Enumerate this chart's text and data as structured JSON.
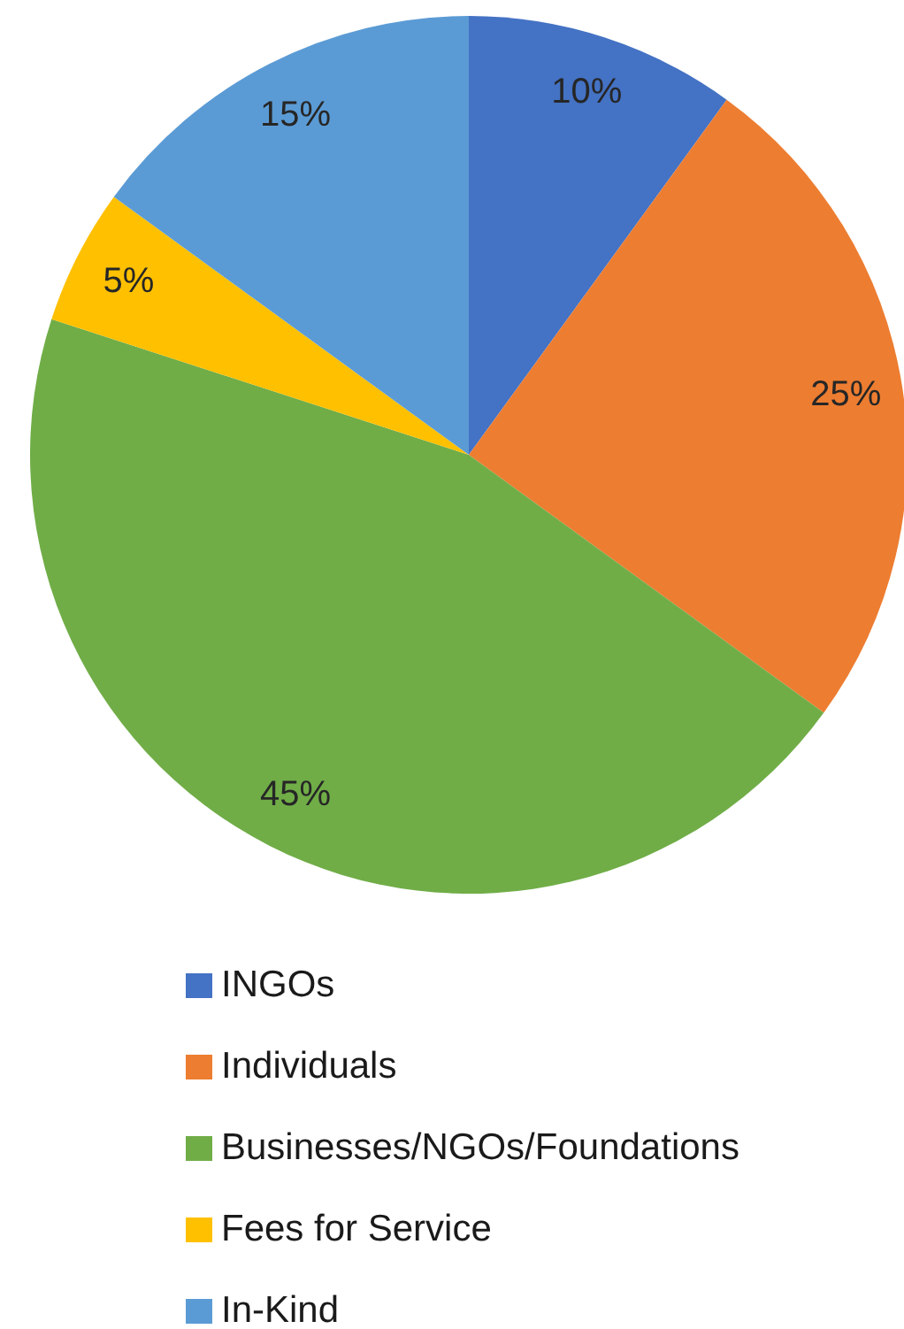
{
  "chart_data": {
    "type": "pie",
    "categories": [
      "INGOs",
      "Individuals",
      "Businesses/NGOs/Foundations",
      "Fees for Service",
      "In-Kind"
    ],
    "values": [
      10,
      25,
      45,
      5,
      15
    ],
    "colors": [
      "#4472c4",
      "#ed7d31",
      "#70ad47",
      "#ffc000",
      "#5b9bd5"
    ],
    "value_labels": [
      "10%",
      "25%",
      "45%",
      "5%",
      "15%"
    ],
    "legend": "bottom"
  }
}
